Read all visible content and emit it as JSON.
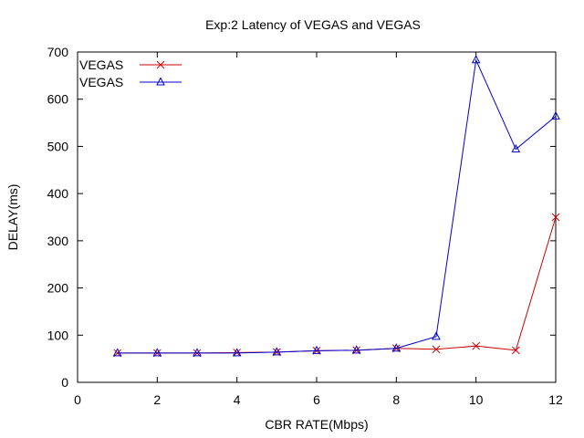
{
  "chart_data": {
    "type": "line",
    "title": "Exp:2 Latency of VEGAS and VEGAS",
    "xlabel": "CBR RATE(Mbps)",
    "ylabel": "DELAY(ms)",
    "xlim": [
      0,
      12
    ],
    "ylim": [
      0,
      700
    ],
    "xticks": [
      0,
      2,
      4,
      6,
      8,
      10,
      12
    ],
    "yticks": [
      0,
      100,
      200,
      300,
      400,
      500,
      600,
      700
    ],
    "grid": false,
    "legend_position": "top-left",
    "x": [
      1,
      2,
      3,
      4,
      5,
      6,
      7,
      8,
      9,
      10,
      11,
      12
    ],
    "series": [
      {
        "name": "VEGAS",
        "color": "#cc0000",
        "marker": "x",
        "values": [
          62,
          62,
          62,
          63,
          64,
          67,
          68,
          72,
          70,
          77,
          68,
          350
        ]
      },
      {
        "name": "VEGAS",
        "color": "#0000cc",
        "marker": "triangle",
        "values": [
          62,
          62,
          62,
          62,
          64,
          67,
          68,
          72,
          97,
          683,
          494,
          564
        ]
      }
    ]
  }
}
